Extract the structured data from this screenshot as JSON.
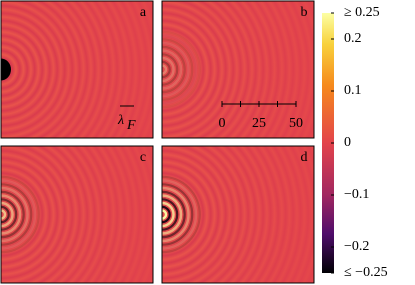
{
  "chart_data": {
    "type": "heatmap",
    "panels": [
      "a",
      "b",
      "c",
      "d"
    ],
    "wavelength_label": {
      "symbol": "λ",
      "subscript": "F"
    },
    "scalebar": {
      "xlim": [
        0,
        50
      ],
      "xticks": [
        0,
        25,
        50
      ],
      "minor_xticks": [
        12.5,
        37.5
      ]
    },
    "colorbar": {
      "ylim": [
        -0.25,
        0.25
      ],
      "yticks": [
        {
          "value": 0.25,
          "label": "≥ 0.25"
        },
        0.2,
        0.1,
        0,
        {
          "value": -0.1,
          "label": "−0.1"
        },
        {
          "value": -0.2,
          "label": "−0.2"
        },
        {
          "value": -0.25,
          "label": "≤ −0.25"
        }
      ]
    }
  }
}
